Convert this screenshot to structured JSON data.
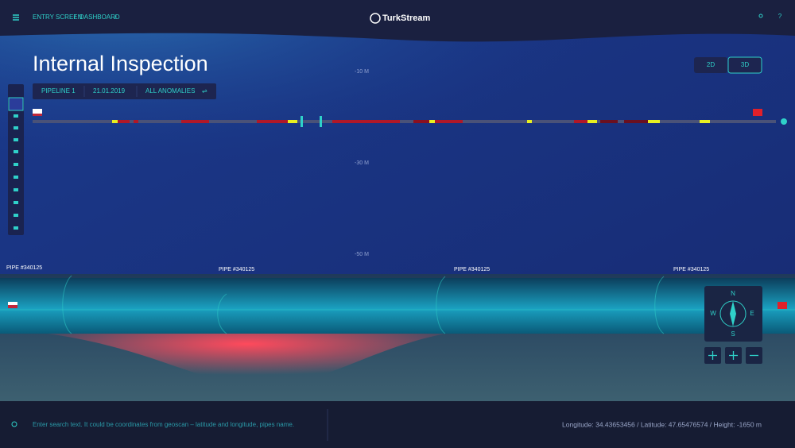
{
  "header": {
    "breadcrumb": [
      "ENTRY SCREEN",
      "DASHBOARD"
    ],
    "separator": "/",
    "logo": "TurkStream"
  },
  "title": "Internal Inspection",
  "view_toggle": [
    "2D",
    "3D"
  ],
  "filters": [
    "PIPELINE 1",
    "21.01.2019",
    "ALL ANOMALIES"
  ],
  "depth_labels": [
    "-10 M",
    "-30 M",
    "-50 M"
  ],
  "pipes": [
    "PIPE #340125",
    "PIPE #340125",
    "PIPE #340125",
    "PIPE #340125"
  ],
  "compass": {
    "north": "N",
    "east": "E",
    "south": "S",
    "west": "W"
  },
  "footer": {
    "search_placeholder": "Enter search text. It could be coordinates from geoscan – latitude and longitude, pipes name.",
    "coordinates": "Longitude: 34.43653456 / Latitude: 47.65476574 / Height: -1650 m"
  }
}
